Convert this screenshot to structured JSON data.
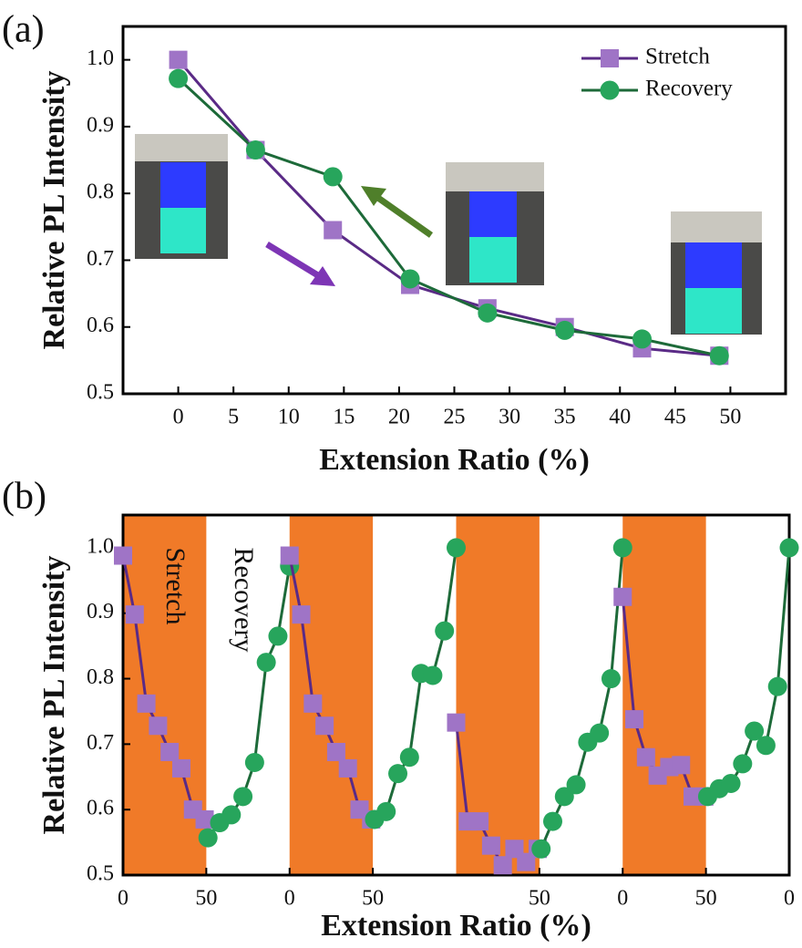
{
  "chart_data": [
    {
      "type": "line",
      "label": "(a)",
      "y_label": "Relative PL Intensity",
      "x_label": "Extension Ratio (%)",
      "x": [
        0,
        7,
        14,
        21,
        28,
        35,
        42,
        49
      ],
      "series": [
        {
          "name": "Stretch",
          "color": "#9f74c6",
          "line_color": "#5a2a86",
          "marker": "square",
          "values": [
            1.0,
            0.865,
            0.745,
            0.663,
            0.628,
            0.6,
            0.568,
            0.557
          ]
        },
        {
          "name": "Recovery",
          "color": "#27a55c",
          "line_color": "#1d6a39",
          "marker": "circle",
          "values": [
            0.972,
            0.865,
            0.825,
            0.672,
            0.621,
            0.595,
            0.582,
            0.557
          ]
        }
      ],
      "xlim": [
        -5,
        55
      ],
      "xticks": [
        0,
        5,
        10,
        15,
        20,
        25,
        30,
        35,
        40,
        45,
        50
      ],
      "ylim": [
        0.5,
        1.05
      ],
      "yticks": [
        0.5,
        0.6,
        0.7,
        0.8,
        0.9,
        {
          "value": 1.0,
          "label": "1.0"
        }
      ],
      "legend": "upper right"
    },
    {
      "type": "line",
      "label": "(b)",
      "y_label": "Relative PL Intensity",
      "x_label": "Extension Ratio (%)",
      "annotations": [
        "Stretch",
        "Recovery"
      ],
      "bands": [
        [
          0,
          50
        ],
        [
          100,
          150
        ],
        [
          200,
          250
        ],
        [
          300,
          350
        ]
      ],
      "band_color": "#f07a28",
      "series": [
        {
          "color": "#9f74c6",
          "line_color": "#5a2a86",
          "marker": "square",
          "x": [
            0,
            7,
            14,
            21,
            28,
            35,
            42,
            49
          ],
          "values": [
            0.988,
            0.898,
            0.762,
            0.728,
            0.688,
            0.663,
            0.6,
            0.585
          ]
        },
        {
          "color": "#27a55c",
          "line_color": "#1d6a39",
          "marker": "circle",
          "x": [
            51,
            58,
            65,
            72,
            79,
            86,
            93,
            100
          ],
          "values": [
            0.557,
            0.58,
            0.592,
            0.62,
            0.672,
            0.825,
            0.865,
            0.972
          ]
        },
        {
          "color": "#9f74c6",
          "line_color": "#5a2a86",
          "marker": "square",
          "x": [
            100,
            107,
            114,
            121,
            128,
            135,
            142,
            149
          ],
          "values": [
            0.988,
            0.898,
            0.762,
            0.728,
            0.688,
            0.663,
            0.6,
            0.585
          ]
        },
        {
          "color": "#27a55c",
          "line_color": "#1d6a39",
          "marker": "circle",
          "x": [
            151,
            158,
            165,
            172,
            179,
            186,
            193,
            200
          ],
          "values": [
            0.585,
            0.597,
            0.655,
            0.68,
            0.808,
            0.805,
            0.873,
            1.0
          ]
        },
        {
          "color": "#9f74c6",
          "line_color": "#5a2a86",
          "marker": "square",
          "x": [
            200,
            207,
            214,
            221,
            228,
            235,
            242,
            249
          ],
          "values": [
            0.733,
            0.582,
            0.582,
            0.545,
            0.515,
            0.54,
            0.52,
            0.54
          ]
        },
        {
          "color": "#27a55c",
          "line_color": "#1d6a39",
          "marker": "circle",
          "x": [
            251,
            258,
            265,
            272,
            279,
            286,
            293,
            300
          ],
          "values": [
            0.54,
            0.582,
            0.62,
            0.638,
            0.703,
            0.717,
            0.8,
            1.0
          ]
        },
        {
          "color": "#9f74c6",
          "line_color": "#5a2a86",
          "marker": "square",
          "x": [
            300,
            307,
            314,
            321,
            328,
            335,
            342,
            349
          ],
          "values": [
            0.925,
            0.738,
            0.68,
            0.652,
            0.665,
            0.668,
            0.62,
            0.62
          ]
        },
        {
          "color": "#27a55c",
          "line_color": "#1d6a39",
          "marker": "circle",
          "x": [
            351,
            358,
            365,
            372,
            379,
            386,
            393,
            400
          ],
          "values": [
            0.62,
            0.632,
            0.64,
            0.67,
            0.72,
            0.698,
            0.788,
            1.0
          ]
        }
      ],
      "xlim": [
        0,
        400
      ],
      "xticks": [
        {
          "value": 0,
          "label": "0"
        },
        {
          "value": 50,
          "label": "50"
        },
        {
          "value": 100,
          "label": "0"
        },
        {
          "value": 150,
          "label": "50"
        },
        {
          "value": 250,
          "label": "50"
        },
        {
          "value": 300,
          "label": "0"
        },
        {
          "value": 350,
          "label": "50"
        },
        {
          "value": 400,
          "label": "0"
        }
      ],
      "ylim": [
        0.5,
        1.05
      ],
      "yticks": [
        0.5,
        0.6,
        0.7,
        0.8,
        0.9,
        {
          "value": 1.0,
          "label": "1.0"
        }
      ]
    }
  ]
}
